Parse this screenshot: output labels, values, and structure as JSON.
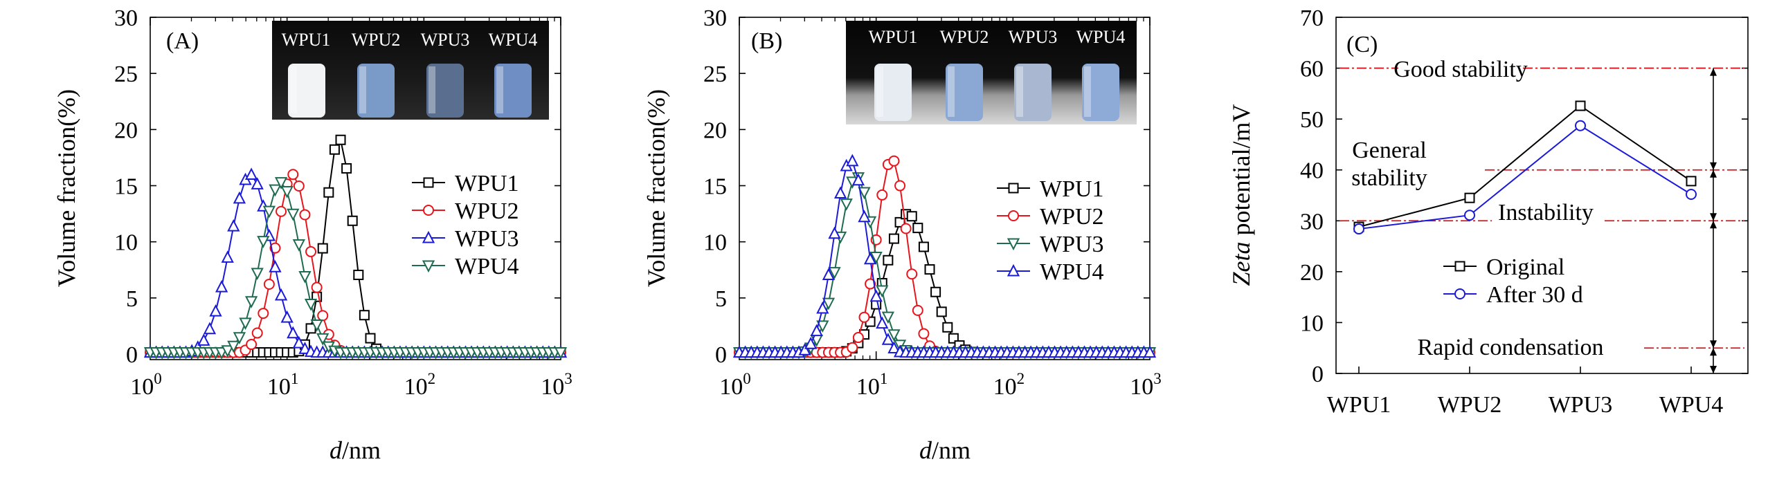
{
  "chart_data": [
    {
      "panel_label": "(A)",
      "type": "line",
      "xscale": "log",
      "xlim": [
        1,
        1000
      ],
      "ylim": [
        0,
        30
      ],
      "xlabel": "d/nm",
      "xlabel_parts": [
        "d",
        "/nm"
      ],
      "ylabel": "Volume fraction(%)",
      "yticks": [
        "0",
        "5",
        "10",
        "15",
        "20",
        "25",
        "30"
      ],
      "xticks": [
        {
          "base": "10",
          "exp": "0"
        },
        {
          "base": "10",
          "exp": "1"
        },
        {
          "base": "10",
          "exp": "2"
        },
        {
          "base": "10",
          "exp": "3"
        }
      ],
      "legend": "center-right",
      "inset_photo_labels": [
        "WPU1",
        "WPU2",
        "WPU3",
        "WPU4"
      ],
      "series": [
        {
          "name": "WPU1",
          "marker": "square",
          "color": "#000000",
          "center_nm": 24,
          "peak": 19.2,
          "sigma": 0.1,
          "nominal": "WPU1"
        },
        {
          "name": "WPU2",
          "marker": "circle",
          "color": "#e8141b",
          "center_nm": 11,
          "peak": 16.0,
          "sigma": 0.125,
          "nominal": "WPU2"
        },
        {
          "name": "WPU3",
          "marker": "triangle-up",
          "color": "#1a1ad8",
          "center_nm": 5.4,
          "peak": 16.0,
          "sigma": 0.15,
          "nominal": "WPU3"
        },
        {
          "name": "WPU4",
          "marker": "triangle-down",
          "color": "#1f6b50",
          "center_nm": 9,
          "peak": 15.3,
          "sigma": 0.14,
          "nominal": "WPU4"
        }
      ]
    },
    {
      "panel_label": "(B)",
      "type": "line",
      "xscale": "log",
      "xlim": [
        1,
        1000
      ],
      "ylim": [
        0,
        30
      ],
      "xlabel": "d/nm",
      "xlabel_parts": [
        "d",
        "/nm"
      ],
      "ylabel": "Volume fraction(%)",
      "yticks": [
        "0",
        "5",
        "10",
        "15",
        "20",
        "25",
        "30"
      ],
      "xticks": [
        {
          "base": "10",
          "exp": "0"
        },
        {
          "base": "10",
          "exp": "1"
        },
        {
          "base": "10",
          "exp": "2"
        },
        {
          "base": "10",
          "exp": "3"
        }
      ],
      "legend": "center-right",
      "inset_photo_labels": [
        "WPU1",
        "WPU2",
        "WPU3",
        "WPU4"
      ],
      "series": [
        {
          "name": "WPU1",
          "marker": "square",
          "color": "#000000",
          "center_nm": 17,
          "peak": 12.5,
          "sigma": 0.16
        },
        {
          "name": "WPU2",
          "marker": "circle",
          "color": "#e8141b",
          "center_nm": 13,
          "peak": 17.4,
          "sigma": 0.11
        },
        {
          "name": "WPU3",
          "marker": "triangle-down",
          "color": "#1f6b50",
          "center_nm": 7.2,
          "peak": 15.8,
          "sigma": 0.13
        },
        {
          "name": "WPU4",
          "marker": "triangle-up",
          "color": "#1a1ad8",
          "center_nm": 6.5,
          "peak": 17.3,
          "sigma": 0.12
        }
      ]
    },
    {
      "panel_label": "(C)",
      "type": "line",
      "categories": [
        "WPU1",
        "WPU2",
        "WPU3",
        "WPU4"
      ],
      "ylim": [
        0,
        70
      ],
      "yticks": [
        "0",
        "10",
        "20",
        "30",
        "40",
        "50",
        "60",
        "70"
      ],
      "ylabel_parts": [
        "Zeta",
        " potential/mV"
      ],
      "legend": "center",
      "series": [
        {
          "name": "Original",
          "marker": "square",
          "color": "#000000",
          "values": [
            28.8,
            34.5,
            52.6,
            37.8
          ]
        },
        {
          "name": "After 30 d",
          "marker": "circle",
          "color": "#1a1ad8",
          "values": [
            28.4,
            31.1,
            48.7,
            35.2
          ]
        }
      ],
      "reference_lines": [
        {
          "value": 60,
          "label": "Good stability"
        },
        {
          "value": 40,
          "label": "General stability"
        },
        {
          "value": 30,
          "label": "Instability"
        },
        {
          "value": 5,
          "label": "Rapid condensation"
        }
      ],
      "zone_labels": {
        "good": "Good stability",
        "general_line1": "General",
        "general_line2": "stability",
        "instability": "Instability",
        "rapid": "Rapid condensation"
      }
    }
  ]
}
